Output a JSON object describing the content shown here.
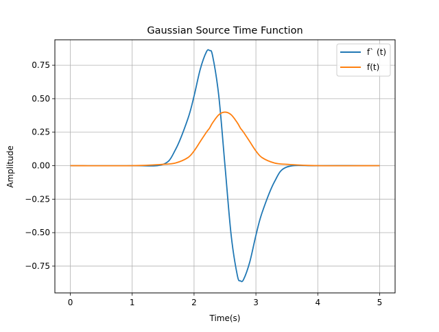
{
  "chart_data": {
    "type": "line",
    "title": "Gaussian Source Time Function",
    "xlabel": "Time(s)",
    "ylabel": "Amplitude",
    "xlim": [
      -0.25,
      5.25
    ],
    "ylim": [
      -0.95,
      0.94
    ],
    "x_ticks": [
      0,
      1,
      2,
      3,
      4,
      5
    ],
    "x_tick_labels": [
      "0",
      "1",
      "2",
      "3",
      "4",
      "5"
    ],
    "y_ticks": [
      -0.75,
      -0.5,
      -0.25,
      0.0,
      0.25,
      0.5,
      0.75
    ],
    "y_tick_labels": [
      "−0.75",
      "−0.50",
      "−0.25",
      "0.00",
      "0.25",
      "0.50",
      "0.75"
    ],
    "grid": true,
    "legend_position": "top-right",
    "x": [
      0.0,
      1.0,
      1.5,
      1.7,
      1.9,
      2.0,
      2.1,
      2.2,
      2.25,
      2.3,
      2.4,
      2.5,
      2.6,
      2.7,
      2.75,
      2.8,
      2.9,
      3.0,
      3.1,
      3.3,
      3.5,
      4.0,
      5.0
    ],
    "series": [
      {
        "name": "f` (t)",
        "color": "#1f77b4",
        "values": [
          0.0,
          0.0,
          0.01,
          0.12,
          0.35,
          0.52,
          0.72,
          0.85,
          0.86,
          0.82,
          0.52,
          0.0,
          -0.52,
          -0.82,
          -0.86,
          -0.85,
          -0.72,
          -0.52,
          -0.35,
          -0.12,
          -0.01,
          0.0,
          0.0
        ]
      },
      {
        "name": "f(t)",
        "color": "#ff7f0e",
        "values": [
          0.0,
          0.0,
          0.01,
          0.02,
          0.06,
          0.11,
          0.18,
          0.25,
          0.28,
          0.32,
          0.38,
          0.4,
          0.38,
          0.32,
          0.28,
          0.25,
          0.18,
          0.11,
          0.06,
          0.02,
          0.01,
          0.0,
          0.0
        ]
      }
    ]
  }
}
